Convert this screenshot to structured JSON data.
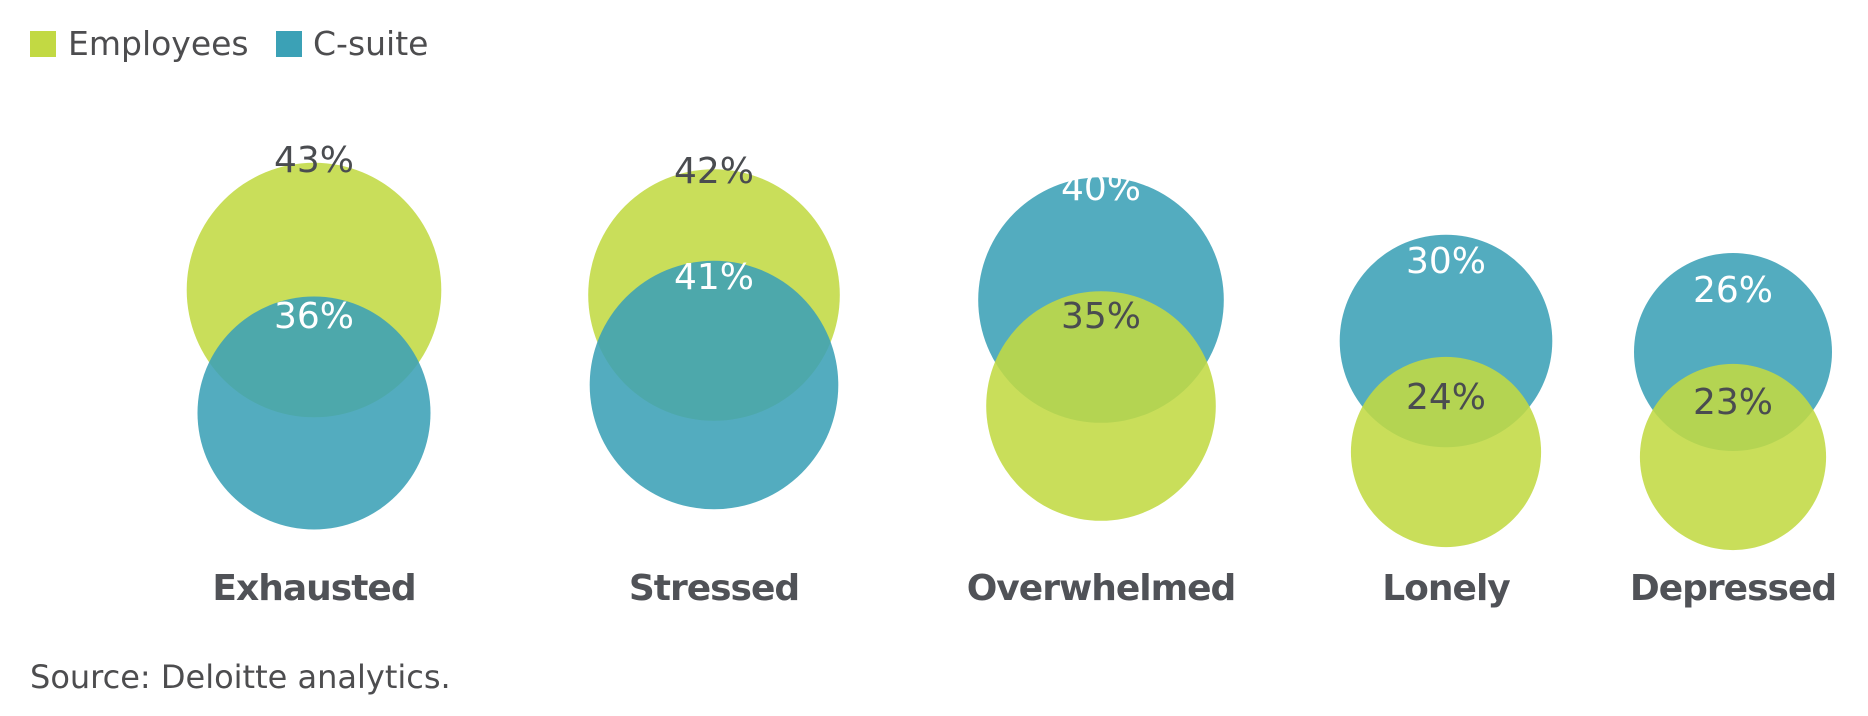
{
  "chart_data": {
    "type": "bubble",
    "legend": {
      "placement": "top-left"
    },
    "series": [
      {
        "name": "Employees",
        "color": "#c2d943"
      },
      {
        "name": "C-suite",
        "color": "#3ba1b6"
      }
    ],
    "categories": [
      "Exhausted",
      "Stressed",
      "Overwhelmed",
      "Lonely",
      "Depressed"
    ],
    "values": {
      "Employees": [
        43,
        42,
        35,
        24,
        23
      ],
      "C-suite": [
        36,
        41,
        40,
        30,
        26
      ]
    },
    "labels": {
      "Employees": [
        "43%",
        "42%",
        "35%",
        "24%",
        "23%"
      ],
      "C-suite": [
        "36%",
        "41%",
        "40%",
        "30%",
        "26%"
      ]
    },
    "front_series": [
      "C-suite",
      "C-suite",
      "Employees",
      "Employees",
      "Employees"
    ],
    "grid": false
  },
  "source": "Source: Deloitte analytics."
}
